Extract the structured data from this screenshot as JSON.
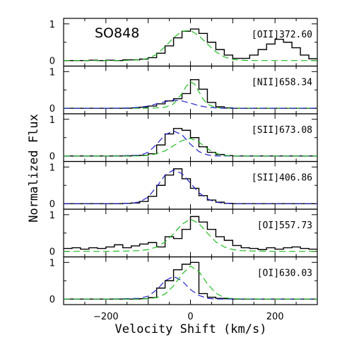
{
  "chart_data": {
    "type": "line",
    "object_label": "SO848",
    "xlabel": "Velocity Shift (km/s)",
    "ylabel": "Normalized Flux",
    "xlim": [
      -300,
      300
    ],
    "x_ticks": [
      -200,
      0,
      200
    ],
    "panels": [
      {
        "line": "[OII]372.60",
        "ylim": [
          -0.15,
          1.15
        ],
        "y_ticks": [
          0,
          1
        ],
        "series": [
          {
            "style": "histogram",
            "color": "#000000",
            "x": [
              -300,
              -280,
              -260,
              -240,
              -220,
              -200,
              -180,
              -160,
              -140,
              -120,
              -100,
              -80,
              -60,
              -40,
              -20,
              0,
              20,
              40,
              60,
              80,
              100,
              120,
              140,
              160,
              180,
              200,
              220,
              240,
              260,
              280
            ],
            "y": [
              0.0,
              0.0,
              0.0,
              0.01,
              0.0,
              0.01,
              0.0,
              0.02,
              0.02,
              0.04,
              0.08,
              0.2,
              0.4,
              0.62,
              0.8,
              0.86,
              0.74,
              0.5,
              0.3,
              0.15,
              0.06,
              0.06,
              0.15,
              0.3,
              0.45,
              0.58,
              0.5,
              0.35,
              0.15,
              0.05
            ]
          },
          {
            "style": "dashed",
            "color": "#22bb22",
            "x": [
              -300,
              -280,
              -260,
              -240,
              -220,
              -200,
              -180,
              -160,
              -140,
              -120,
              -100,
              -80,
              -60,
              -40,
              -20,
              0,
              20,
              40,
              60,
              80,
              100,
              120,
              140,
              160,
              180,
              200,
              220,
              240,
              260,
              280,
              300
            ],
            "y": [
              0.0,
              0.0,
              0.0,
              0.0,
              0.0,
              0.0,
              0.0,
              0.0,
              0.01,
              0.02,
              0.06,
              0.17,
              0.38,
              0.62,
              0.8,
              0.82,
              0.68,
              0.45,
              0.24,
              0.1,
              0.03,
              0.01,
              0.0,
              0.0,
              0.0,
              0.0,
              0.0,
              0.0,
              0.0,
              0.0,
              0.0
            ]
          }
        ]
      },
      {
        "line": "[NII]658.34",
        "ylim": [
          -0.15,
          1.15
        ],
        "y_ticks": [
          0,
          1
        ],
        "series": [
          {
            "style": "histogram",
            "color": "#000000",
            "x": [
              -300,
              -280,
              -260,
              -240,
              -220,
              -200,
              -180,
              -160,
              -140,
              -120,
              -100,
              -80,
              -60,
              -40,
              -20,
              0,
              20,
              40,
              60,
              80,
              100,
              120,
              140,
              160,
              180,
              200,
              220,
              240,
              260,
              280
            ],
            "y": [
              0.0,
              0.0,
              0.0,
              0.0,
              0.0,
              0.0,
              0.0,
              0.0,
              0.01,
              0.03,
              0.06,
              0.12,
              0.2,
              0.26,
              0.4,
              0.78,
              0.52,
              0.16,
              0.04,
              0.01,
              0.0,
              0.0,
              0.0,
              0.0,
              0.0,
              0.0,
              0.0,
              0.0,
              0.0,
              0.0
            ]
          },
          {
            "style": "dashed",
            "color": "#22bb22",
            "x": [
              -300,
              -200,
              -100,
              -80,
              -60,
              -40,
              -20,
              -10,
              0,
              10,
              20,
              30,
              40,
              60,
              80,
              100,
              200,
              300
            ],
            "y": [
              0.0,
              0.0,
              0.0,
              0.01,
              0.03,
              0.12,
              0.4,
              0.6,
              0.72,
              0.66,
              0.45,
              0.25,
              0.11,
              0.02,
              0.0,
              0.0,
              0.0,
              0.0
            ]
          },
          {
            "style": "dashed",
            "color": "#2222cc",
            "x": [
              -300,
              -200,
              -140,
              -120,
              -100,
              -80,
              -60,
              -40,
              -20,
              0,
              20,
              40,
              60,
              80,
              100,
              200,
              300
            ],
            "y": [
              0.0,
              0.0,
              0.01,
              0.03,
              0.06,
              0.12,
              0.18,
              0.22,
              0.2,
              0.14,
              0.07,
              0.03,
              0.01,
              0.0,
              0.0,
              0.0,
              0.0
            ]
          }
        ]
      },
      {
        "line": "[SII]673.08",
        "ylim": [
          -0.15,
          1.15
        ],
        "y_ticks": [
          0,
          1
        ],
        "series": [
          {
            "style": "histogram",
            "color": "#000000",
            "x": [
              -300,
              -280,
              -260,
              -240,
              -220,
              -200,
              -180,
              -160,
              -140,
              -120,
              -100,
              -80,
              -60,
              -40,
              -20,
              0,
              20,
              40,
              60,
              80,
              100,
              120,
              140,
              160,
              180,
              200,
              220,
              240,
              260,
              280
            ],
            "y": [
              0.0,
              0.0,
              0.0,
              0.0,
              0.0,
              0.0,
              0.0,
              0.0,
              0.01,
              0.02,
              0.06,
              0.3,
              0.6,
              0.75,
              0.7,
              0.5,
              0.25,
              0.1,
              0.04,
              0.01,
              0.0,
              0.0,
              0.0,
              0.0,
              0.0,
              0.0,
              0.0,
              0.0,
              0.0,
              0.0
            ]
          },
          {
            "style": "dashed",
            "color": "#2222cc",
            "x": [
              -300,
              -200,
              -120,
              -100,
              -80,
              -60,
              -40,
              -20,
              0,
              20,
              40,
              60,
              80,
              100,
              200,
              300
            ],
            "y": [
              0.0,
              0.0,
              0.02,
              0.1,
              0.32,
              0.58,
              0.68,
              0.58,
              0.32,
              0.12,
              0.03,
              0.0,
              0.0,
              0.0,
              0.0,
              0.0
            ]
          },
          {
            "style": "dashed",
            "color": "#22bb22",
            "x": [
              -300,
              -200,
              -120,
              -100,
              -80,
              -60,
              -40,
              -20,
              0,
              20,
              40,
              60,
              80,
              100,
              200,
              300
            ],
            "y": [
              0.0,
              0.0,
              0.0,
              0.02,
              0.06,
              0.14,
              0.28,
              0.42,
              0.48,
              0.38,
              0.2,
              0.07,
              0.02,
              0.0,
              0.0,
              0.0
            ]
          }
        ]
      },
      {
        "line": "[SII]406.86",
        "ylim": [
          -0.15,
          1.15
        ],
        "y_ticks": [
          0,
          1
        ],
        "series": [
          {
            "style": "histogram",
            "color": "#000000",
            "x": [
              -300,
              -280,
              -260,
              -240,
              -220,
              -200,
              -180,
              -160,
              -140,
              -120,
              -100,
              -80,
              -60,
              -40,
              -20,
              0,
              20,
              40,
              60,
              80,
              100,
              120,
              140,
              160,
              180,
              200,
              220,
              240,
              260,
              280
            ],
            "y": [
              0.0,
              0.0,
              0.0,
              0.0,
              0.0,
              0.0,
              0.0,
              0.01,
              0.02,
              0.06,
              0.2,
              0.5,
              0.78,
              0.95,
              0.68,
              0.42,
              0.22,
              0.1,
              0.04,
              0.01,
              0.0,
              0.0,
              0.0,
              0.0,
              0.0,
              0.0,
              0.0,
              0.0,
              0.0,
              0.0
            ]
          },
          {
            "style": "dashed",
            "color": "#2222cc",
            "x": [
              -300,
              -200,
              -140,
              -120,
              -100,
              -80,
              -60,
              -40,
              -20,
              0,
              20,
              40,
              60,
              80,
              100,
              200,
              300
            ],
            "y": [
              0.0,
              0.0,
              0.01,
              0.05,
              0.18,
              0.46,
              0.78,
              0.92,
              0.82,
              0.56,
              0.3,
              0.13,
              0.04,
              0.01,
              0.0,
              0.0,
              0.0
            ]
          }
        ]
      },
      {
        "line": "[OI]557.73",
        "ylim": [
          -0.15,
          1.15
        ],
        "y_ticks": [
          0,
          1
        ],
        "series": [
          {
            "style": "histogram",
            "color": "#000000",
            "x": [
              -300,
              -280,
              -260,
              -240,
              -220,
              -200,
              -180,
              -160,
              -140,
              -120,
              -100,
              -80,
              -60,
              -40,
              -20,
              0,
              20,
              40,
              60,
              80,
              100,
              120,
              140,
              160,
              180,
              200,
              220,
              240,
              260,
              280
            ],
            "y": [
              0.08,
              0.1,
              0.06,
              0.1,
              0.08,
              0.12,
              0.18,
              0.1,
              0.15,
              0.2,
              0.24,
              0.12,
              0.4,
              0.35,
              0.6,
              0.95,
              0.8,
              0.6,
              0.4,
              0.3,
              0.16,
              0.1,
              0.08,
              0.05,
              0.1,
              0.06,
              0.1,
              0.12,
              0.08,
              0.06
            ]
          },
          {
            "style": "dashed",
            "color": "#22bb22",
            "x": [
              -300,
              -200,
              -150,
              -120,
              -100,
              -80,
              -60,
              -40,
              -20,
              0,
              20,
              40,
              60,
              80,
              100,
              120,
              150,
              200,
              300
            ],
            "y": [
              0.0,
              0.0,
              0.01,
              0.02,
              0.05,
              0.12,
              0.26,
              0.48,
              0.74,
              0.88,
              0.76,
              0.5,
              0.26,
              0.12,
              0.05,
              0.02,
              0.01,
              0.0,
              0.0
            ]
          }
        ]
      },
      {
        "line": "[OI]630.03",
        "ylim": [
          -0.15,
          1.15
        ],
        "y_ticks": [
          0,
          1
        ],
        "series": [
          {
            "style": "histogram",
            "color": "#000000",
            "x": [
              -300,
              -280,
              -260,
              -240,
              -220,
              -200,
              -180,
              -160,
              -140,
              -120,
              -100,
              -80,
              -60,
              -40,
              -20,
              0,
              20,
              40,
              60,
              80,
              100,
              120,
              140,
              160,
              180,
              200,
              220,
              240,
              260,
              280
            ],
            "y": [
              0.0,
              0.0,
              0.0,
              0.0,
              0.0,
              0.0,
              0.0,
              0.0,
              0.0,
              0.01,
              0.04,
              0.3,
              0.5,
              0.8,
              0.95,
              1.0,
              0.15,
              0.05,
              0.02,
              0.01,
              0.0,
              0.0,
              0.0,
              0.0,
              0.0,
              0.0,
              0.0,
              0.0,
              0.0,
              0.0
            ]
          },
          {
            "style": "dashed",
            "color": "#2222cc",
            "x": [
              -300,
              -200,
              -120,
              -100,
              -80,
              -60,
              -40,
              -20,
              0,
              20,
              40,
              60,
              80,
              100,
              200,
              300
            ],
            "y": [
              0.0,
              0.0,
              0.02,
              0.08,
              0.25,
              0.5,
              0.62,
              0.5,
              0.26,
              0.1,
              0.02,
              0.0,
              0.0,
              0.0,
              0.0,
              0.0
            ]
          },
          {
            "style": "dashed",
            "color": "#22bb22",
            "x": [
              -300,
              -200,
              -120,
              -100,
              -80,
              -60,
              -40,
              -20,
              0,
              20,
              40,
              60,
              80,
              100,
              200,
              300
            ],
            "y": [
              0.0,
              0.0,
              0.0,
              0.01,
              0.04,
              0.14,
              0.36,
              0.68,
              0.9,
              0.75,
              0.42,
              0.16,
              0.04,
              0.01,
              0.0,
              0.0
            ]
          }
        ]
      }
    ]
  }
}
